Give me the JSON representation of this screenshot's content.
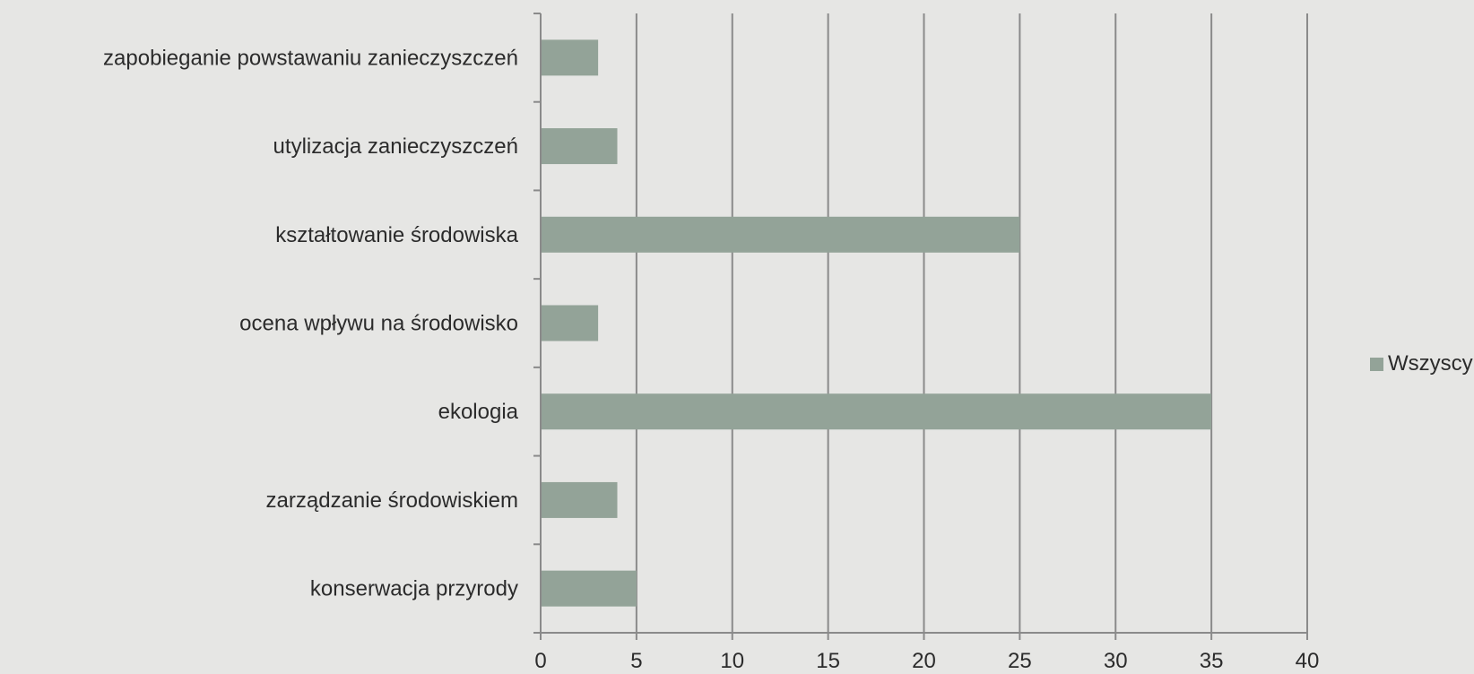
{
  "chart_data": {
    "type": "bar",
    "orientation": "horizontal",
    "title": "",
    "xlabel": "",
    "ylabel": "",
    "categories": [
      "zapobieganie powstawaniu zanieczyszczeń",
      "utylizacja zanieczyszczeń",
      "kształtowanie środowiska",
      "ocena wpływu na środowisko",
      "ekologia",
      "zarządzanie środowiskiem",
      "konserwacja przyrody"
    ],
    "series": [
      {
        "name": "Wszyscy",
        "values": [
          3,
          4,
          25,
          3,
          35,
          4,
          5
        ],
        "color": "#93a398"
      }
    ],
    "xlim": [
      0,
      40
    ],
    "xticks": [
      0,
      5,
      10,
      15,
      20,
      25,
      30,
      35,
      40
    ],
    "grid": "vertical",
    "legend_position": "right"
  },
  "colors": {
    "bar": "#93a398",
    "axis": "#8a8a8a",
    "grid": "#8a8a8a"
  }
}
